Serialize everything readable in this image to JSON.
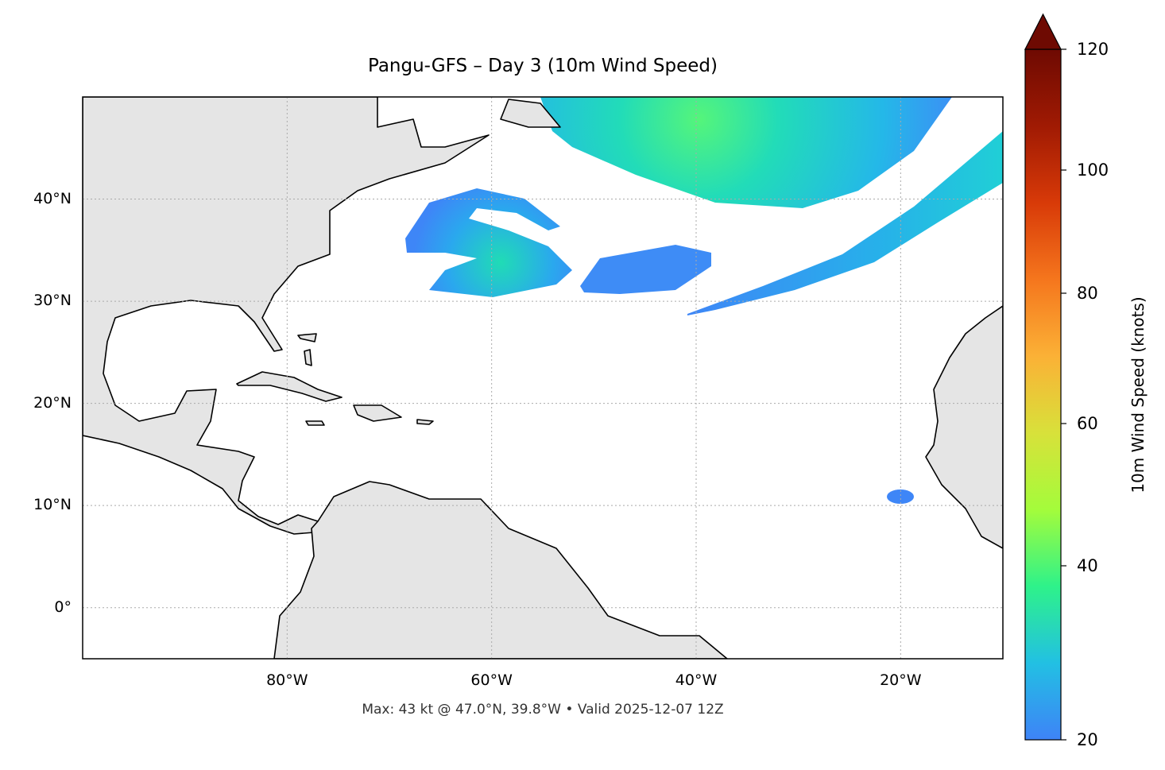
{
  "title": "Pangu-GFS – Day 3 (10m Wind Speed)",
  "footer": "Max: 43 kt @ 47.0°N, 39.8°W • Valid 2025-12-07 12Z",
  "map": {
    "projection": "PlateCarree",
    "lon_range": [
      -100,
      -10
    ],
    "lat_range": [
      -5,
      50
    ],
    "gridlines": true,
    "land_color": "#e5e5e5",
    "ocean_color": "#ffffff",
    "lon_ticks": [
      {
        "value": -80,
        "label": "80°W"
      },
      {
        "value": -60,
        "label": "60°W"
      },
      {
        "value": -40,
        "label": "40°W"
      },
      {
        "value": -20,
        "label": "20°W"
      }
    ],
    "lat_ticks": [
      {
        "value": 0,
        "label": "0°"
      },
      {
        "value": 10,
        "label": "10°N"
      },
      {
        "value": 20,
        "label": "20°N"
      },
      {
        "value": 30,
        "label": "30°N"
      },
      {
        "value": 40,
        "label": "40°N"
      }
    ]
  },
  "colorbar": {
    "label": "10m Wind Speed (knots)",
    "colormap": "turbo",
    "range": [
      20,
      120
    ],
    "extend": "max",
    "ticks": [
      "20",
      "40",
      "60",
      "80",
      "100",
      "120"
    ],
    "colors": [
      "#3e83f7",
      "#22c0e3",
      "#2ef28a",
      "#a4fc3b",
      "#d8e13a",
      "#fbb136",
      "#f5761d",
      "#d83a08",
      "#a01a03",
      "#6e0a02"
    ]
  },
  "max_point": {
    "value_kt": 43,
    "lat": 47.0,
    "lon": -39.8
  }
}
